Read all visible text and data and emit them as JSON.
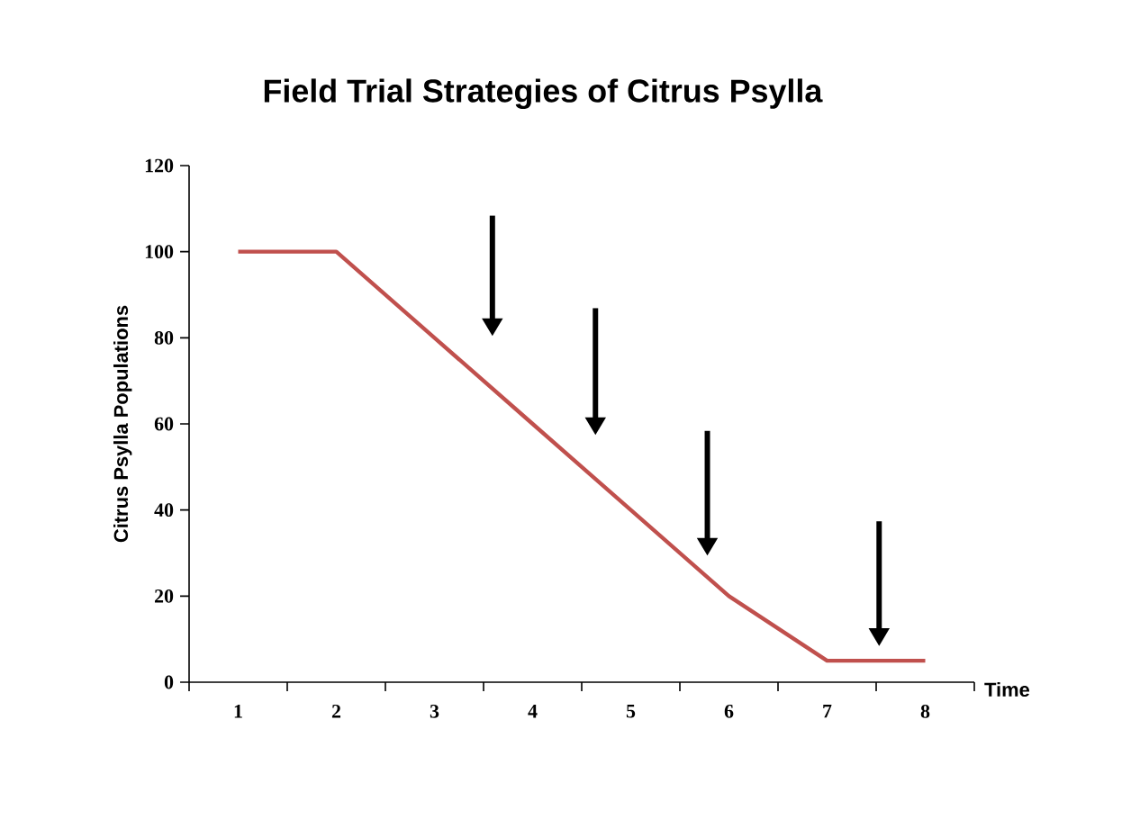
{
  "chart_data": {
    "type": "line",
    "title": "Field Trial Strategies of Citrus Psylla",
    "xlabel": "Time",
    "ylabel": "Citrus Psylla Populations",
    "categories": [
      "1",
      "2",
      "3",
      "4",
      "5",
      "6",
      "7",
      "8"
    ],
    "series": [
      {
        "color": "#c0504d",
        "values": [
          100,
          100,
          80,
          60,
          40,
          20,
          5,
          5
        ]
      }
    ],
    "ylim": [
      0,
      120
    ],
    "yticks": [
      0,
      20,
      40,
      60,
      80,
      100,
      120
    ],
    "grid": false,
    "marker": "none",
    "line_style": "solid"
  }
}
